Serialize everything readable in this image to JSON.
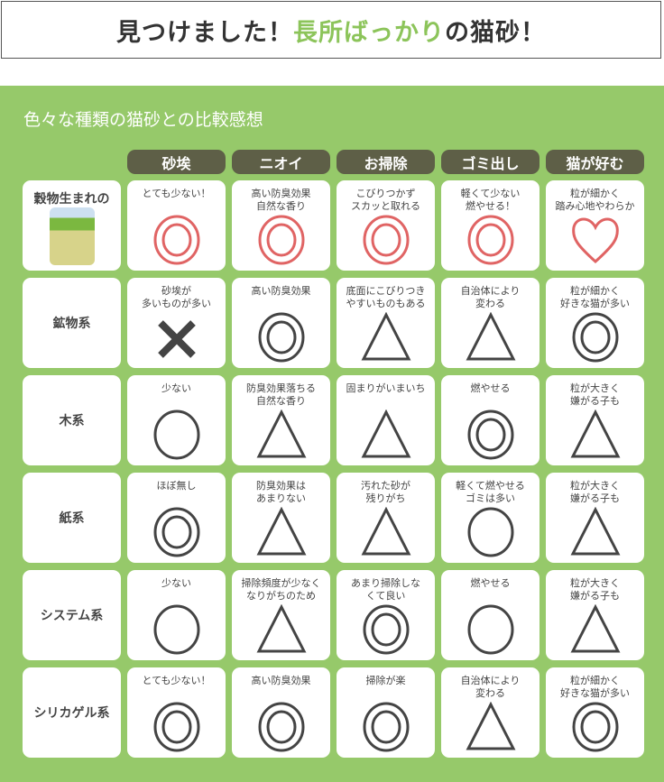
{
  "title": {
    "pre": "見つけました！",
    "highlight": "長所ばっかり",
    "post": "の猫砂！"
  },
  "subtitle": "色々な種類の猫砂との比較感想",
  "colors": {
    "panel": "#96c96a",
    "header": "#5e5f47",
    "highlight": "#8cc45a",
    "symbol": "#444444",
    "symbol_highlight": "#e06464"
  },
  "columns": [
    "砂埃",
    "ニオイ",
    "お掃除",
    "ゴミ出し",
    "猫が好む"
  ],
  "rows": [
    {
      "label": "穀物生まれの",
      "product_image": "cat-litter-bag",
      "highlight": true,
      "cells": [
        {
          "text": "とても少ない！",
          "symbol": "double-circle"
        },
        {
          "text": "高い防臭効果\n自然な香り",
          "symbol": "double-circle"
        },
        {
          "text": "こびりつかず\nスカッと取れる",
          "symbol": "double-circle"
        },
        {
          "text": "軽くて少ない\n燃やせる！",
          "symbol": "double-circle"
        },
        {
          "text": "粒が細かく\n踏み心地やわらか",
          "symbol": "heart"
        }
      ]
    },
    {
      "label": "鉱物系",
      "cells": [
        {
          "text": "砂埃が\n多いものが多い",
          "symbol": "cross"
        },
        {
          "text": "高い防臭効果",
          "symbol": "double-circle"
        },
        {
          "text": "底面にこびりつき\nやすいものもある",
          "symbol": "triangle"
        },
        {
          "text": "自治体により\n変わる",
          "symbol": "triangle"
        },
        {
          "text": "粒が細かく\n好きな猫が多い",
          "symbol": "double-circle"
        }
      ]
    },
    {
      "label": "木系",
      "cells": [
        {
          "text": "少ない",
          "symbol": "circle"
        },
        {
          "text": "防臭効果落ちる\n自然な香り",
          "symbol": "triangle"
        },
        {
          "text": "固まりがいまいち",
          "symbol": "triangle"
        },
        {
          "text": "燃やせる",
          "symbol": "double-circle"
        },
        {
          "text": "粒が大きく\n嫌がる子も",
          "symbol": "triangle"
        }
      ]
    },
    {
      "label": "紙系",
      "cells": [
        {
          "text": "ほぼ無し",
          "symbol": "double-circle"
        },
        {
          "text": "防臭効果は\nあまりない",
          "symbol": "triangle"
        },
        {
          "text": "汚れた砂が\n残りがち",
          "symbol": "triangle"
        },
        {
          "text": "軽くて燃やせる\nゴミは多い",
          "symbol": "circle"
        },
        {
          "text": "粒が大きく\n嫌がる子も",
          "symbol": "triangle"
        }
      ]
    },
    {
      "label": "システム系",
      "cells": [
        {
          "text": "少ない",
          "symbol": "circle"
        },
        {
          "text": "掃除頻度が少なく\nなりがちのため",
          "symbol": "triangle"
        },
        {
          "text": "あまり掃除しな\nくて良い",
          "symbol": "double-circle"
        },
        {
          "text": "燃やせる",
          "symbol": "circle"
        },
        {
          "text": "粒が大きく\n嫌がる子も",
          "symbol": "triangle"
        }
      ]
    },
    {
      "label": "シリカゲル系",
      "cells": [
        {
          "text": "とても少ない！",
          "symbol": "double-circle"
        },
        {
          "text": "高い防臭効果",
          "symbol": "double-circle"
        },
        {
          "text": "掃除が楽",
          "symbol": "double-circle"
        },
        {
          "text": "自治体により\n変わる",
          "symbol": "triangle"
        },
        {
          "text": "粒が細かく\n好きな猫が多い",
          "symbol": "double-circle"
        }
      ]
    }
  ]
}
